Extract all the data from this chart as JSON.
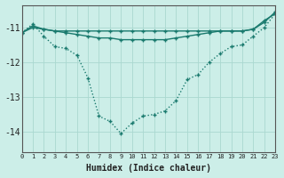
{
  "xlabel": "Humidex (Indice chaleur)",
  "bg_color": "#cceee8",
  "line_color": "#1a7a6e",
  "grid_color": "#aad8d0",
  "x_min": 0,
  "x_max": 23,
  "y_min": -14.6,
  "y_max": -10.35,
  "yticks": [
    -14,
    -13,
    -12,
    -11
  ],
  "series": [
    {
      "x": [
        0,
        1,
        2,
        3,
        4,
        5,
        6,
        7,
        8,
        9,
        10,
        11,
        12,
        13,
        14,
        15,
        16,
        17,
        18,
        19,
        20,
        21,
        22,
        23
      ],
      "y": [
        -11.15,
        -11.0,
        -11.05,
        -11.1,
        -11.1,
        -11.1,
        -11.1,
        -11.1,
        -11.1,
        -11.1,
        -11.1,
        -11.1,
        -11.1,
        -11.1,
        -11.1,
        -11.1,
        -11.1,
        -11.1,
        -11.1,
        -11.1,
        -11.1,
        -11.05,
        -10.8,
        -10.6
      ],
      "linestyle": "-",
      "marker": "+",
      "markersize": 3.5,
      "linewidth": 1.0
    },
    {
      "x": [
        0,
        1,
        2,
        3,
        4,
        5,
        6,
        7,
        8,
        9,
        10,
        11,
        12,
        13,
        14,
        15,
        16,
        17,
        18,
        19,
        20,
        21,
        22,
        23
      ],
      "y": [
        -11.15,
        -10.95,
        -11.05,
        -11.1,
        -11.15,
        -11.2,
        -11.25,
        -11.3,
        -11.3,
        -11.35,
        -11.35,
        -11.35,
        -11.35,
        -11.35,
        -11.3,
        -11.25,
        -11.2,
        -11.15,
        -11.1,
        -11.1,
        -11.1,
        -11.05,
        -10.85,
        -10.55
      ],
      "linestyle": "-",
      "marker": "+",
      "markersize": 3.5,
      "linewidth": 1.0
    },
    {
      "x": [
        0,
        1,
        2,
        3,
        4,
        5,
        6,
        7,
        8,
        9,
        10,
        11,
        12,
        13,
        14,
        15,
        16,
        17,
        18,
        19,
        20,
        21,
        22,
        23
      ],
      "y": [
        -11.15,
        -10.9,
        -11.25,
        -11.55,
        -11.6,
        -11.8,
        -12.45,
        -13.55,
        -13.7,
        -14.05,
        -13.75,
        -13.55,
        -13.5,
        -13.4,
        -13.1,
        -12.5,
        -12.35,
        -12.0,
        -11.75,
        -11.55,
        -11.5,
        -11.25,
        -11.0,
        -10.6
      ],
      "linestyle": ":",
      "marker": "+",
      "markersize": 3.5,
      "linewidth": 1.0
    }
  ]
}
